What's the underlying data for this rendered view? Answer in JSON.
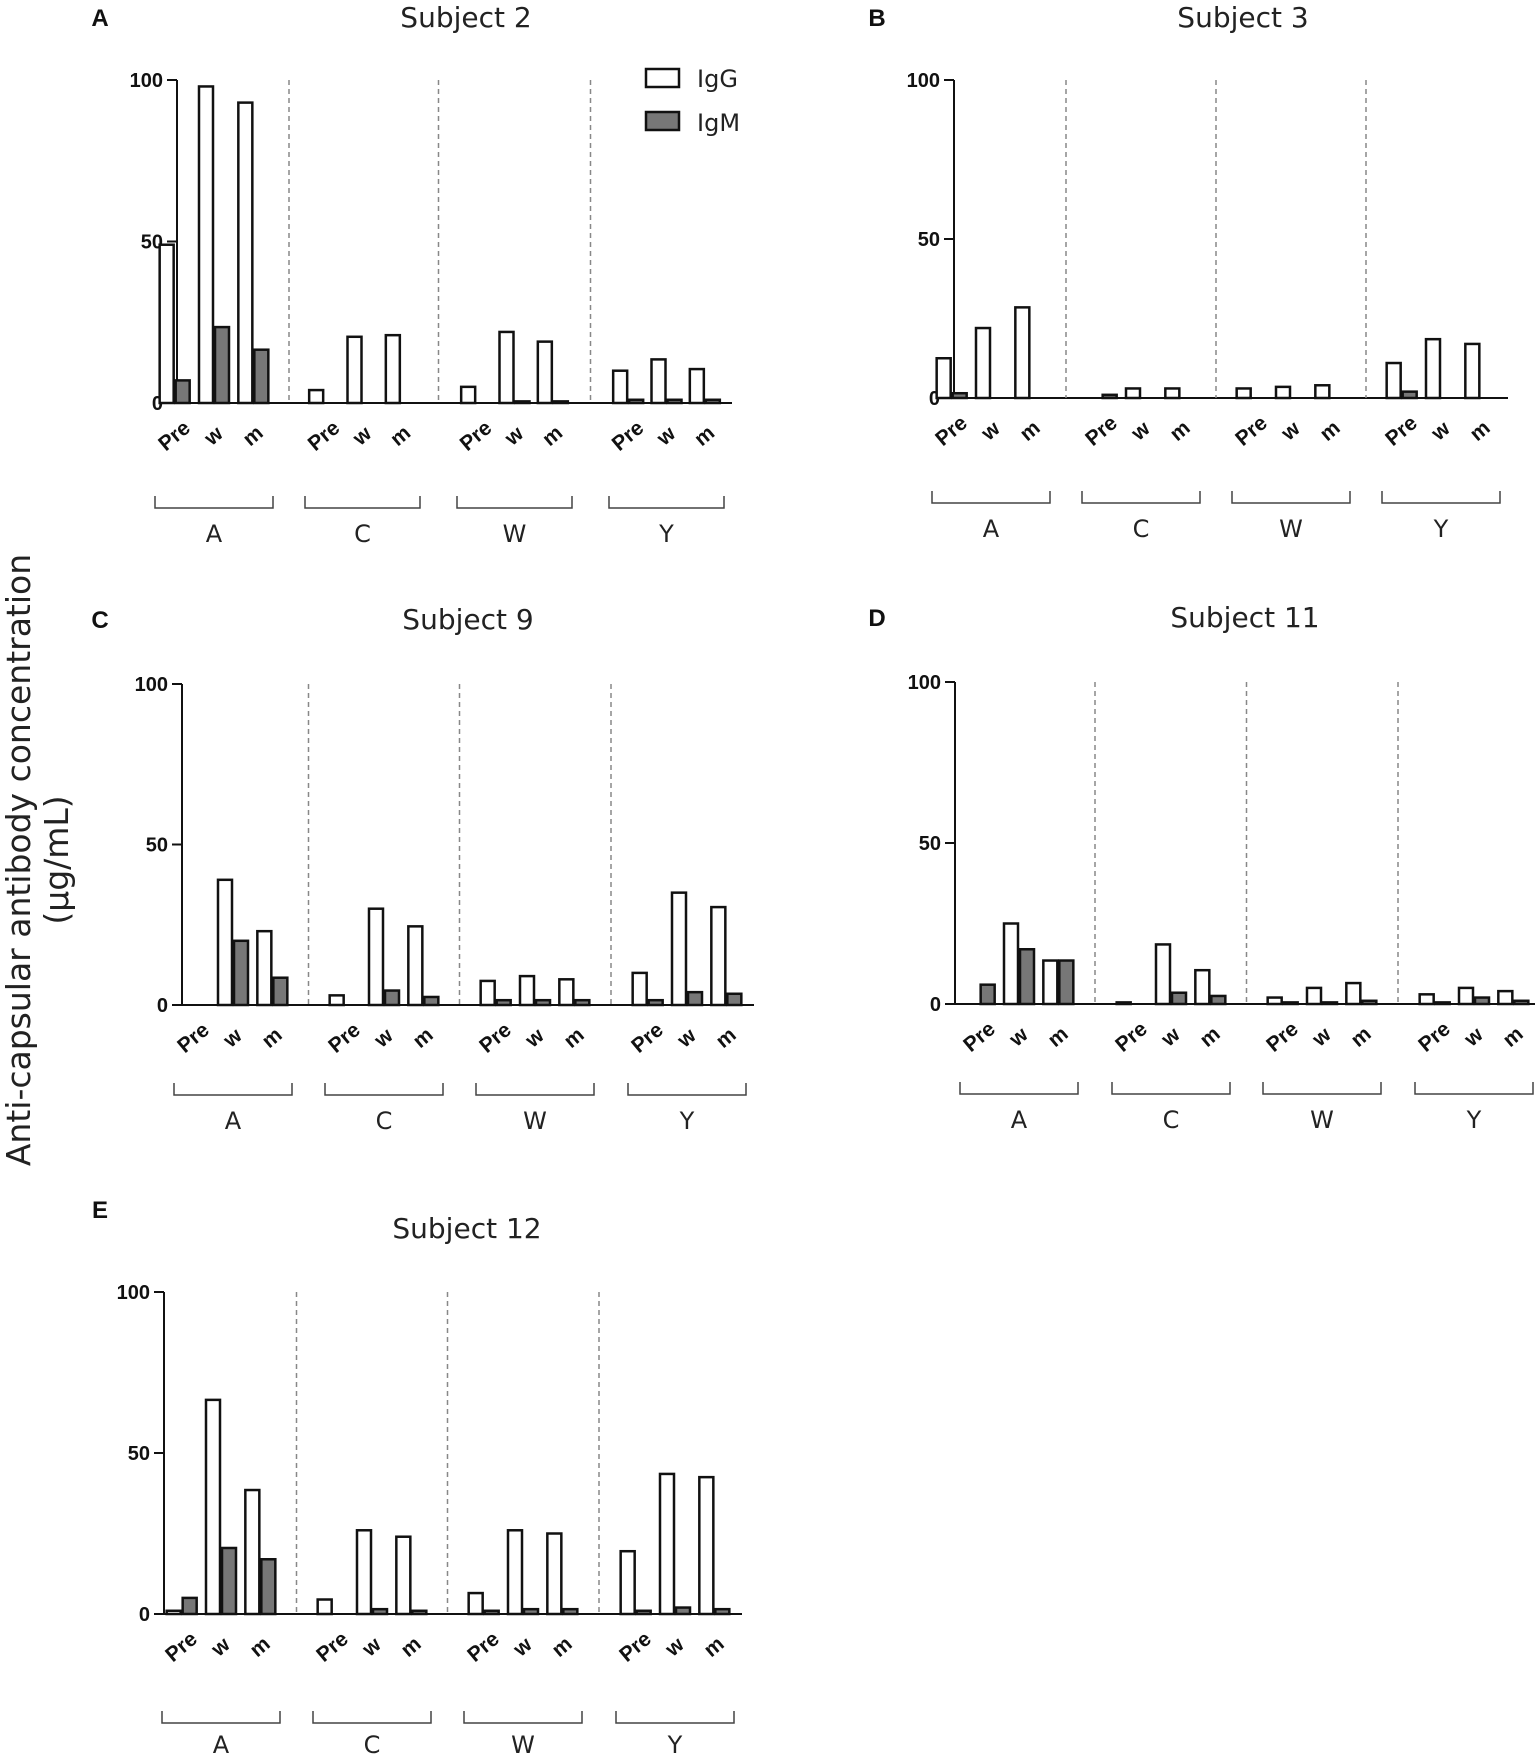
{
  "figure": {
    "y_axis_label_line1": "Anti-capsular antibody concentration",
    "y_axis_label_line2": "(µg/mL)"
  },
  "legend": {
    "igg_label": "IgG",
    "igm_label": "IgM"
  },
  "colors": {
    "igg_fill": "#ffffff",
    "igm_fill": "#777777",
    "bar_stroke": "#111111",
    "separator": "#888888"
  },
  "chart_data": [
    {
      "type": "bar",
      "panel": "A",
      "title": "Subject 2",
      "groups": [
        "A",
        "C",
        "W",
        "Y"
      ],
      "timepoints": [
        "Pre",
        "w",
        "m"
      ],
      "ylim": [
        0,
        100
      ],
      "yticks": [
        0,
        50,
        100
      ],
      "series": [
        {
          "name": "IgG",
          "values": [
            49,
            98,
            93,
            4,
            20.5,
            21,
            5,
            22,
            19,
            10,
            13.5,
            10.5
          ]
        },
        {
          "name": "IgM",
          "values": [
            7,
            23.5,
            16.5,
            0,
            0,
            0,
            0,
            0.5,
            0.5,
            1,
            1,
            1
          ]
        }
      ]
    },
    {
      "type": "bar",
      "panel": "B",
      "title": "Subject 3",
      "groups": [
        "A",
        "C",
        "W",
        "Y"
      ],
      "timepoints": [
        "Pre",
        "w",
        "m"
      ],
      "ylim": [
        0,
        100
      ],
      "yticks": [
        0,
        50,
        100
      ],
      "series": [
        {
          "name": "IgG",
          "values": [
            12.5,
            22,
            28.5,
            0,
            3,
            3,
            3,
            3.5,
            4,
            11,
            18.5,
            17
          ]
        },
        {
          "name": "IgM",
          "values": [
            1.5,
            0,
            0,
            1,
            0,
            0,
            0,
            0,
            0,
            2,
            0,
            0
          ]
        }
      ]
    },
    {
      "type": "bar",
      "panel": "C",
      "title": "Subject 9",
      "groups": [
        "A",
        "C",
        "W",
        "Y"
      ],
      "timepoints": [
        "Pre",
        "w",
        "m"
      ],
      "ylim": [
        0,
        100
      ],
      "yticks": [
        0,
        50,
        100
      ],
      "series": [
        {
          "name": "IgG",
          "values": [
            0,
            39,
            23,
            3,
            30,
            24.5,
            7.5,
            9,
            8,
            10,
            35,
            30.5
          ]
        },
        {
          "name": "IgM",
          "values": [
            0,
            20,
            8.5,
            0,
            4.5,
            2.5,
            1.5,
            1.5,
            1.5,
            1.5,
            4,
            3.5
          ]
        }
      ]
    },
    {
      "type": "bar",
      "panel": "D",
      "title": "Subject 11",
      "groups": [
        "A",
        "C",
        "W",
        "Y"
      ],
      "timepoints": [
        "Pre",
        "w",
        "m"
      ],
      "ylim": [
        0,
        100
      ],
      "yticks": [
        0,
        50,
        100
      ],
      "series": [
        {
          "name": "IgG",
          "values": [
            0,
            25,
            13.5,
            0.5,
            18.5,
            10.5,
            2,
            5,
            6.5,
            3,
            5,
            4
          ]
        },
        {
          "name": "IgM",
          "values": [
            6,
            17,
            13.5,
            0,
            3.5,
            2.5,
            0.5,
            0.5,
            1,
            0.5,
            2,
            1
          ]
        }
      ]
    },
    {
      "type": "bar",
      "panel": "E",
      "title": "Subject 12",
      "groups": [
        "A",
        "C",
        "W",
        "Y"
      ],
      "timepoints": [
        "Pre",
        "w",
        "m"
      ],
      "ylim": [
        0,
        100
      ],
      "yticks": [
        0,
        50,
        100
      ],
      "series": [
        {
          "name": "IgG",
          "values": [
            1,
            66.5,
            38.5,
            4.5,
            26,
            24,
            6.5,
            26,
            25,
            19.5,
            43.5,
            42.5
          ]
        },
        {
          "name": "IgM",
          "values": [
            5,
            20.5,
            17,
            0,
            1.5,
            1,
            1,
            1.5,
            1.5,
            1,
            2,
            1.5
          ]
        }
      ]
    }
  ]
}
